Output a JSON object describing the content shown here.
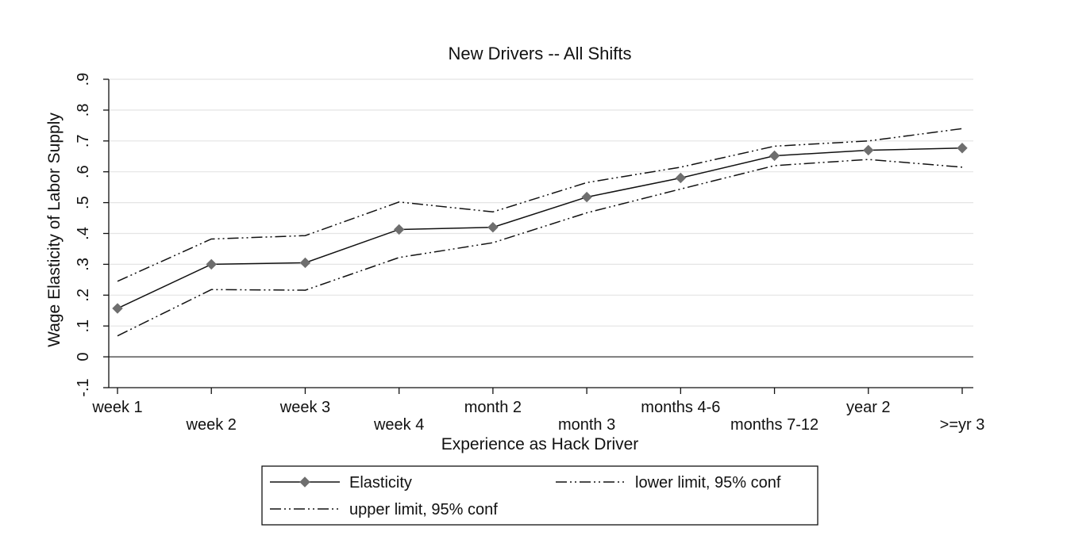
{
  "chart_data": {
    "type": "line",
    "title": "New Drivers -- All Shifts",
    "xlabel": "Experience as Hack Driver",
    "ylabel": "Wage Elasticity of Labor Supply",
    "categories": [
      "week 1",
      "week 2",
      "week 3",
      "week 4",
      "month 2",
      "month 3",
      "months 4-6",
      "months 7-12",
      "year 2",
      ">=yr 3"
    ],
    "ylim": [
      -0.1,
      0.9
    ],
    "yticks": [
      {
        "value": -0.1,
        "label": "-.1"
      },
      {
        "value": 0,
        "label": "0"
      },
      {
        "value": 0.1,
        "label": ".1"
      },
      {
        "value": 0.2,
        "label": ".2"
      },
      {
        "value": 0.3,
        "label": ".3"
      },
      {
        "value": 0.4,
        "label": ".4"
      },
      {
        "value": 0.5,
        "label": ".5"
      },
      {
        "value": 0.6,
        "label": ".6"
      },
      {
        "value": 0.7,
        "label": ".7"
      },
      {
        "value": 0.8,
        "label": ".8"
      },
      {
        "value": 0.9,
        "label": ".9"
      }
    ],
    "grid": true,
    "reference_line": 0,
    "legend_position": "bottom",
    "series": [
      {
        "name": "Elasticity",
        "style": "solid",
        "marker": "diamond",
        "values": [
          0.157,
          0.3,
          0.305,
          0.413,
          0.42,
          0.518,
          0.58,
          0.652,
          0.67,
          0.677
        ]
      },
      {
        "name": "lower limit, 95% conf",
        "style": "dash-dot",
        "marker": "none",
        "values": [
          0.068,
          0.218,
          0.216,
          0.322,
          0.37,
          0.467,
          0.544,
          0.62,
          0.64,
          0.615
        ]
      },
      {
        "name": "upper limit, 95% conf",
        "style": "dash-dot",
        "marker": "none",
        "values": [
          0.245,
          0.382,
          0.393,
          0.502,
          0.47,
          0.565,
          0.615,
          0.683,
          0.7,
          0.74
        ]
      }
    ],
    "colors": {
      "line": "#111111",
      "marker": "#6e6e6e",
      "grid": "#e4e4e4",
      "axis": "#111111"
    }
  }
}
